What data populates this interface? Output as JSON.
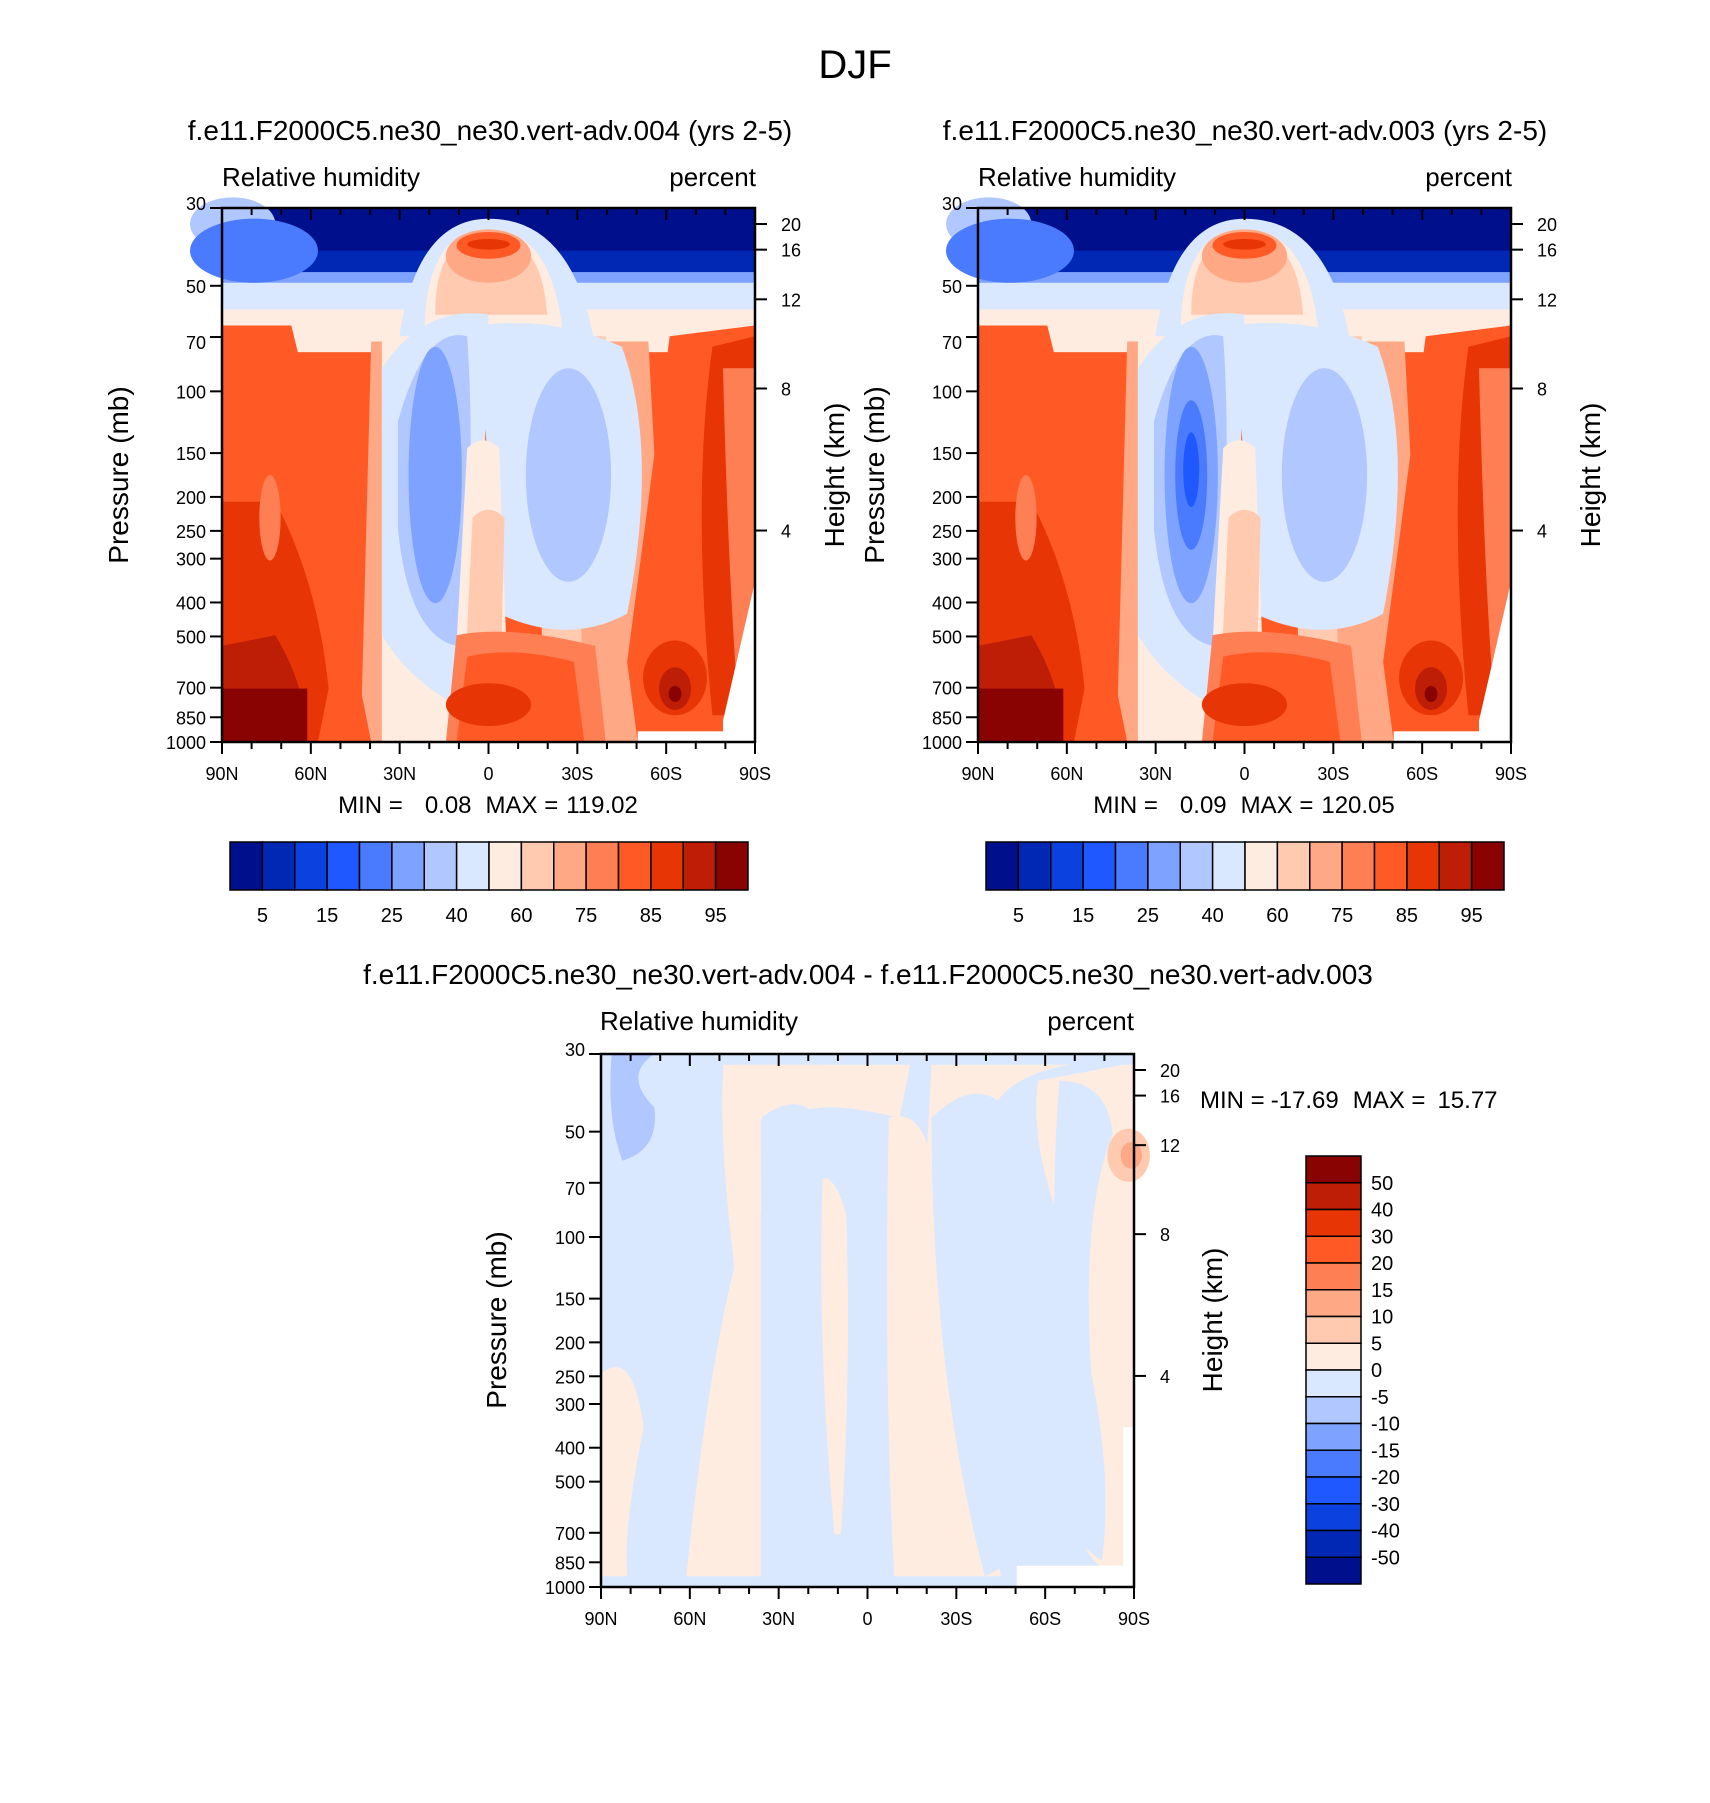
{
  "figure": {
    "title": "DJF"
  },
  "colors": {
    "rh_levels": [
      "#000f8c",
      "#0028b5",
      "#0a41df",
      "#1f58ff",
      "#4a7bff",
      "#7ea2ff",
      "#b0c7ff",
      "#d9e8ff",
      "#ffece0",
      "#ffcab0",
      "#ffa885",
      "#ff7f55",
      "#ff5a25",
      "#e73506",
      "#be1d06",
      "#8a0303"
    ],
    "diff_levels": [
      "#000f8c",
      "#0028b5",
      "#0a41df",
      "#1f58ff",
      "#4a7bff",
      "#7ea2ff",
      "#b0c7ff",
      "#d9e8ff",
      "#ffece0",
      "#ffcab0",
      "#ffa885",
      "#ff7f55",
      "#ff5a25",
      "#e73506",
      "#be1d06",
      "#8a0303"
    ]
  },
  "chart_data": [
    {
      "type": "heatmap",
      "title": "f.e11.F2000C5.ne30_ne30.vert-adv.004 (yrs 2-5)",
      "left_label": "Relative humidity",
      "right_label": "percent",
      "xlabel": "",
      "ylabel": "Pressure (mb)",
      "y2label": "Height (km)",
      "x_ticks": [
        "90N",
        "60N",
        "30N",
        "0",
        "30S",
        "60S",
        "90S"
      ],
      "y_ticks": [
        "30",
        "50",
        "70",
        "100",
        "150",
        "200",
        "250",
        "300",
        "400",
        "500",
        "700",
        "850",
        "1000"
      ],
      "y2_ticks": [
        "20",
        "16",
        "12",
        "8",
        "4"
      ],
      "min_label": "MIN =",
      "min_value": "0.08",
      "max_label": "MAX =",
      "max_value": "119.02",
      "levels": [
        "5",
        "15",
        "25",
        "40",
        "60",
        "75",
        "85",
        "95"
      ],
      "variant": 0
    },
    {
      "type": "heatmap",
      "title": "f.e11.F2000C5.ne30_ne30.vert-adv.003 (yrs 2-5)",
      "left_label": "Relative humidity",
      "right_label": "percent",
      "xlabel": "",
      "ylabel": "Pressure (mb)",
      "y2label": "Height (km)",
      "x_ticks": [
        "90N",
        "60N",
        "30N",
        "0",
        "30S",
        "60S",
        "90S"
      ],
      "y_ticks": [
        "30",
        "50",
        "70",
        "100",
        "150",
        "200",
        "250",
        "300",
        "400",
        "500",
        "700",
        "850",
        "1000"
      ],
      "y2_ticks": [
        "20",
        "16",
        "12",
        "8",
        "4"
      ],
      "min_label": "MIN =",
      "min_value": "0.09",
      "max_label": "MAX =",
      "max_value": "120.05",
      "levels": [
        "5",
        "15",
        "25",
        "40",
        "60",
        "75",
        "85",
        "95"
      ],
      "variant": 1
    },
    {
      "type": "heatmap",
      "title": "f.e11.F2000C5.ne30_ne30.vert-adv.004 - f.e11.F2000C5.ne30_ne30.vert-adv.003",
      "left_label": "Relative humidity",
      "right_label": "percent",
      "xlabel": "",
      "ylabel": "Pressure (mb)",
      "y2label": "Height (km)",
      "x_ticks": [
        "90N",
        "60N",
        "30N",
        "0",
        "30S",
        "60S",
        "90S"
      ],
      "y_ticks": [
        "30",
        "50",
        "70",
        "100",
        "150",
        "200",
        "250",
        "300",
        "400",
        "500",
        "700",
        "850",
        "1000"
      ],
      "y2_ticks": [
        "20",
        "16",
        "12",
        "8",
        "4"
      ],
      "min_label": "MIN =",
      "min_value": "-17.69",
      "max_label": "MAX =",
      "max_value": "15.77",
      "levels": [
        "50",
        "40",
        "30",
        "20",
        "15",
        "10",
        "5",
        "0",
        "-5",
        "-10",
        "-15",
        "-20",
        "-30",
        "-40",
        "-50"
      ]
    }
  ]
}
